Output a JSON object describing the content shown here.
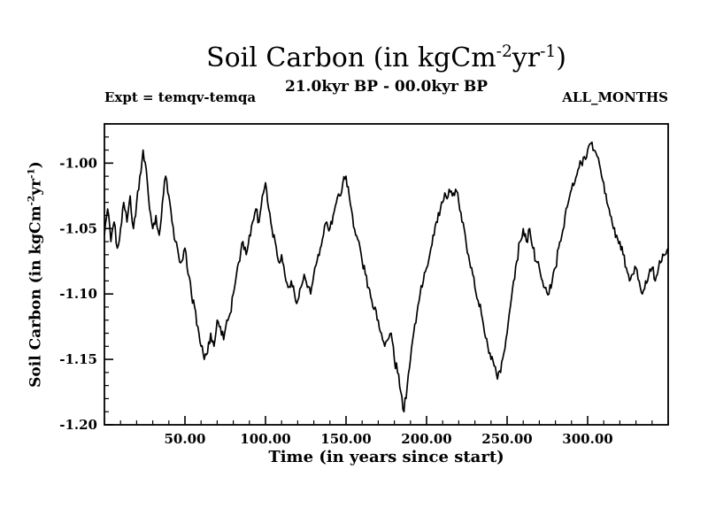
{
  "header": {
    "title": {
      "pre": "Soil Carbon (in kgCm",
      "sup1": "-2",
      "mid": "yr",
      "sup2": "-1",
      "post": ")"
    },
    "subtitle": "21.0kyr BP - 00.0kyr BP",
    "expt_label": "Expt = temqv-temqa",
    "months_label": "ALL_MONTHS"
  },
  "chart_data": {
    "type": "line",
    "title": "Soil Carbon (in kgCm-2yr-1)",
    "subtitle": "21.0kyr BP - 00.0kyr BP",
    "xlabel": "Time (in years since start)",
    "ylabel": "Soil Carbon (in kgCm-2yr-1)",
    "legend_position": "none",
    "grid": false,
    "line_color": "#000000",
    "xlim": [
      0,
      350
    ],
    "ylim": [
      -1.2,
      -0.97
    ],
    "xticks": {
      "values": [
        50,
        100,
        150,
        200,
        250,
        300
      ],
      "labels": [
        "50.00",
        "100.00",
        "150.00",
        "200.00",
        "250.00",
        "300.00"
      ],
      "minor_step": 10
    },
    "yticks": {
      "values": [
        -1.0,
        -1.05,
        -1.1,
        -1.15,
        -1.2
      ],
      "labels": [
        "-1.00",
        "-1.05",
        "-1.10",
        "-1.15",
        "-1.20"
      ],
      "minor_step": 0.01
    },
    "series_name": "soil_carbon",
    "x_start": 0,
    "x_step": 2,
    "noise_band": 0.004,
    "y": [
      -1.055,
      -1.035,
      -1.06,
      -1.045,
      -1.065,
      -1.05,
      -1.03,
      -1.045,
      -1.025,
      -1.05,
      -1.03,
      -1.01,
      -0.99,
      -1.005,
      -1.035,
      -1.05,
      -1.04,
      -1.055,
      -1.03,
      -1.01,
      -1.025,
      -1.045,
      -1.06,
      -1.07,
      -1.075,
      -1.065,
      -1.085,
      -1.1,
      -1.11,
      -1.125,
      -1.14,
      -1.15,
      -1.145,
      -1.13,
      -1.14,
      -1.12,
      -1.125,
      -1.135,
      -1.12,
      -1.115,
      -1.1,
      -1.085,
      -1.075,
      -1.06,
      -1.07,
      -1.055,
      -1.045,
      -1.035,
      -1.045,
      -1.025,
      -1.015,
      -1.035,
      -1.05,
      -1.06,
      -1.075,
      -1.07,
      -1.085,
      -1.095,
      -1.09,
      -1.1,
      -1.105,
      -1.095,
      -1.085,
      -1.095,
      -1.1,
      -1.085,
      -1.075,
      -1.065,
      -1.055,
      -1.045,
      -1.05,
      -1.04,
      -1.03,
      -1.025,
      -1.015,
      -1.01,
      -1.025,
      -1.04,
      -1.055,
      -1.06,
      -1.075,
      -1.085,
      -1.095,
      -1.105,
      -1.11,
      -1.12,
      -1.13,
      -1.14,
      -1.135,
      -1.13,
      -1.15,
      -1.16,
      -1.175,
      -1.19,
      -1.17,
      -1.15,
      -1.13,
      -1.115,
      -1.1,
      -1.09,
      -1.08,
      -1.07,
      -1.055,
      -1.045,
      -1.04,
      -1.03,
      -1.025,
      -1.02,
      -1.025,
      -1.02,
      -1.03,
      -1.045,
      -1.055,
      -1.07,
      -1.08,
      -1.095,
      -1.105,
      -1.115,
      -1.13,
      -1.14,
      -1.15,
      -1.155,
      -1.165,
      -1.16,
      -1.145,
      -1.13,
      -1.11,
      -1.09,
      -1.075,
      -1.06,
      -1.05,
      -1.06,
      -1.05,
      -1.065,
      -1.075,
      -1.08,
      -1.09,
      -1.095,
      -1.1,
      -1.09,
      -1.08,
      -1.065,
      -1.055,
      -1.04,
      -1.03,
      -1.02,
      -1.015,
      -1.005,
      -1.0,
      -0.995,
      -0.99,
      -0.985,
      -0.99,
      -0.995,
      -1.005,
      -1.015,
      -1.03,
      -1.04,
      -1.05,
      -1.055,
      -1.06,
      -1.07,
      -1.08,
      -1.09,
      -1.085,
      -1.08,
      -1.09,
      -1.1,
      -1.09,
      -1.085,
      -1.08,
      -1.09,
      -1.08,
      -1.075,
      -1.07,
      -1.065
    ]
  },
  "axis_labels": {
    "x": "Time (in years since start)",
    "y": {
      "pre": "Soil Carbon (in kgCm",
      "sup1": "-2",
      "mid": "yr",
      "sup2": "-1",
      "post": ")"
    }
  }
}
